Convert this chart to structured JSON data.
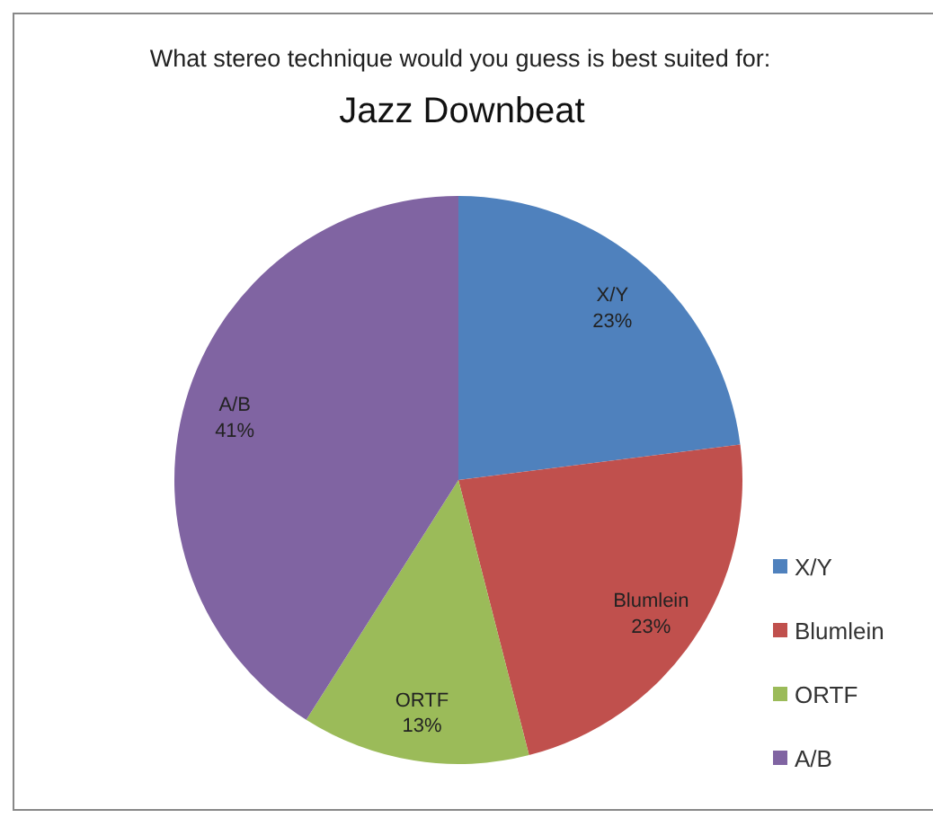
{
  "chart_data": {
    "type": "pie",
    "title": "Jazz Downbeat",
    "subtitle": "What stereo technique would you guess is best suited for:",
    "categories": [
      "X/Y",
      "Blumlein",
      "ORTF",
      "A/B"
    ],
    "values": [
      23,
      23,
      13,
      41
    ],
    "value_labels": [
      "23%",
      "23%",
      "13%",
      "41%"
    ],
    "colors": [
      "#4f81bd",
      "#c0504d",
      "#9bbb59",
      "#8064a2"
    ],
    "legend": "right"
  }
}
